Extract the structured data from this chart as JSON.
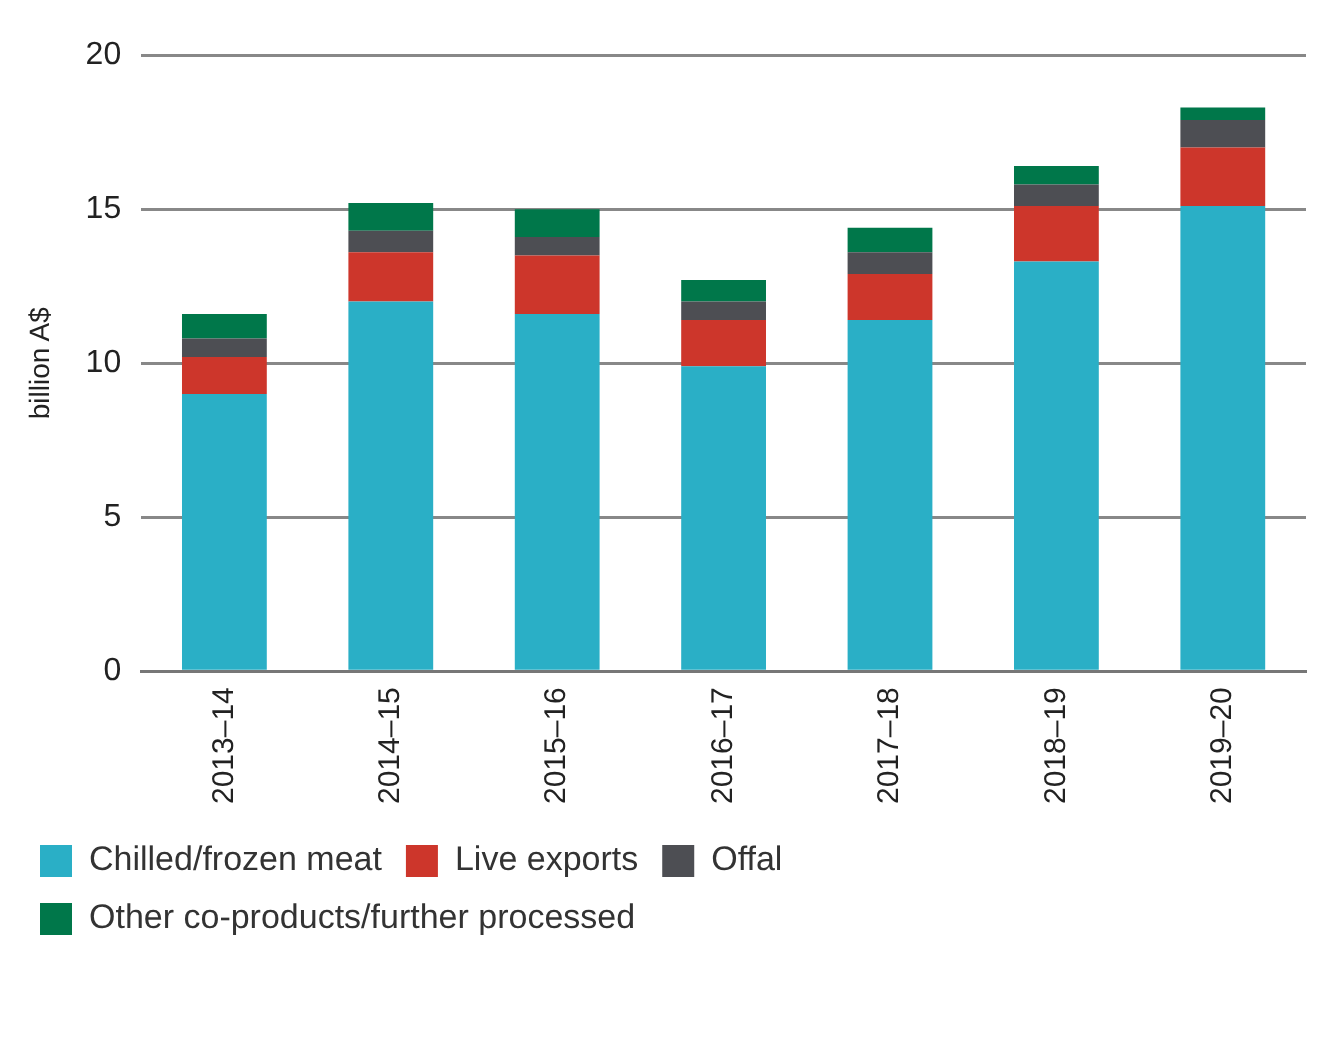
{
  "chart_data": {
    "type": "bar",
    "stacked": true,
    "ylabel": "billion A$",
    "categories": [
      "2013–14",
      "2014–15",
      "2015–16",
      "2016–17",
      "2017–18",
      "2018–19",
      "2019–20"
    ],
    "series": [
      {
        "name": "Chilled/frozen meat",
        "color": "#2aafc6",
        "values": [
          9.0,
          12.0,
          11.6,
          9.9,
          11.4,
          13.3,
          15.1
        ]
      },
      {
        "name": "Live exports",
        "color": "#cd362b",
        "values": [
          1.2,
          1.6,
          1.9,
          1.5,
          1.5,
          1.8,
          1.9
        ]
      },
      {
        "name": "Offal",
        "color": "#4d4e53",
        "values": [
          0.6,
          0.7,
          0.6,
          0.6,
          0.7,
          0.7,
          0.9
        ]
      },
      {
        "name": "Other co-products/further processed",
        "color": "#00774a",
        "values": [
          0.8,
          0.9,
          0.9,
          0.7,
          0.8,
          0.6,
          0.4
        ]
      }
    ],
    "ylim": [
      0,
      20
    ],
    "yticks": [
      0,
      5,
      10,
      15,
      20
    ],
    "grid": "y",
    "legend": "bottom"
  }
}
